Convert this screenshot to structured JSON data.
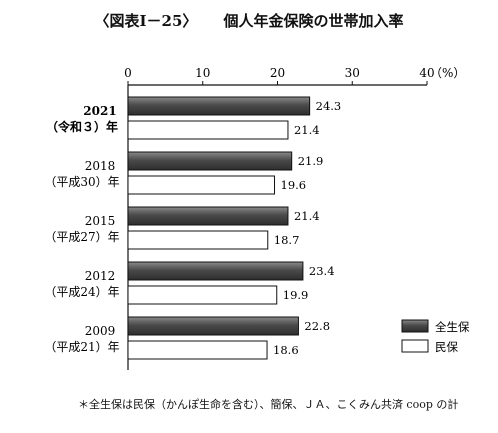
{
  "title_main": "〈図表Ⅰ－25〉",
  "title_sub": "個人年金保険の世帯加入率",
  "footnote": "＊全生保は民保（かんぽ生命を含む）、簡保、ＪＡ、こくみん共済 coop の計",
  "chart_data": {
    "type": "bar",
    "orientation": "horizontal",
    "categories": [
      {
        "year": "2021",
        "era": "（令和３）年"
      },
      {
        "year": "2018",
        "era": "（平成30）年"
      },
      {
        "year": "2015",
        "era": "（平成27）年"
      },
      {
        "year": "2012",
        "era": "（平成24）年"
      },
      {
        "year": "2009",
        "era": "（平成21）年"
      }
    ],
    "series": [
      {
        "name": "全生保",
        "values": [
          24.3,
          21.9,
          21.4,
          23.4,
          22.8
        ],
        "color": "#555555"
      },
      {
        "name": "民保",
        "values": [
          21.4,
          19.6,
          18.7,
          19.9,
          18.6
        ],
        "color": "#ffffff"
      }
    ],
    "value_labels": {
      "全生保": [
        "24.3",
        "21.9",
        "21.4",
        "23.4",
        "22.8"
      ],
      "民保": [
        "21.4",
        "19.6",
        "18.7",
        "19.9",
        "18.6"
      ]
    },
    "xlim": [
      0,
      40
    ],
    "xticks": [
      0,
      10,
      20,
      30,
      40
    ],
    "xtick_labels": [
      "0",
      "10",
      "20",
      "30",
      "40"
    ],
    "unit": "（%）",
    "legend": "bottom-right",
    "grid": false
  }
}
